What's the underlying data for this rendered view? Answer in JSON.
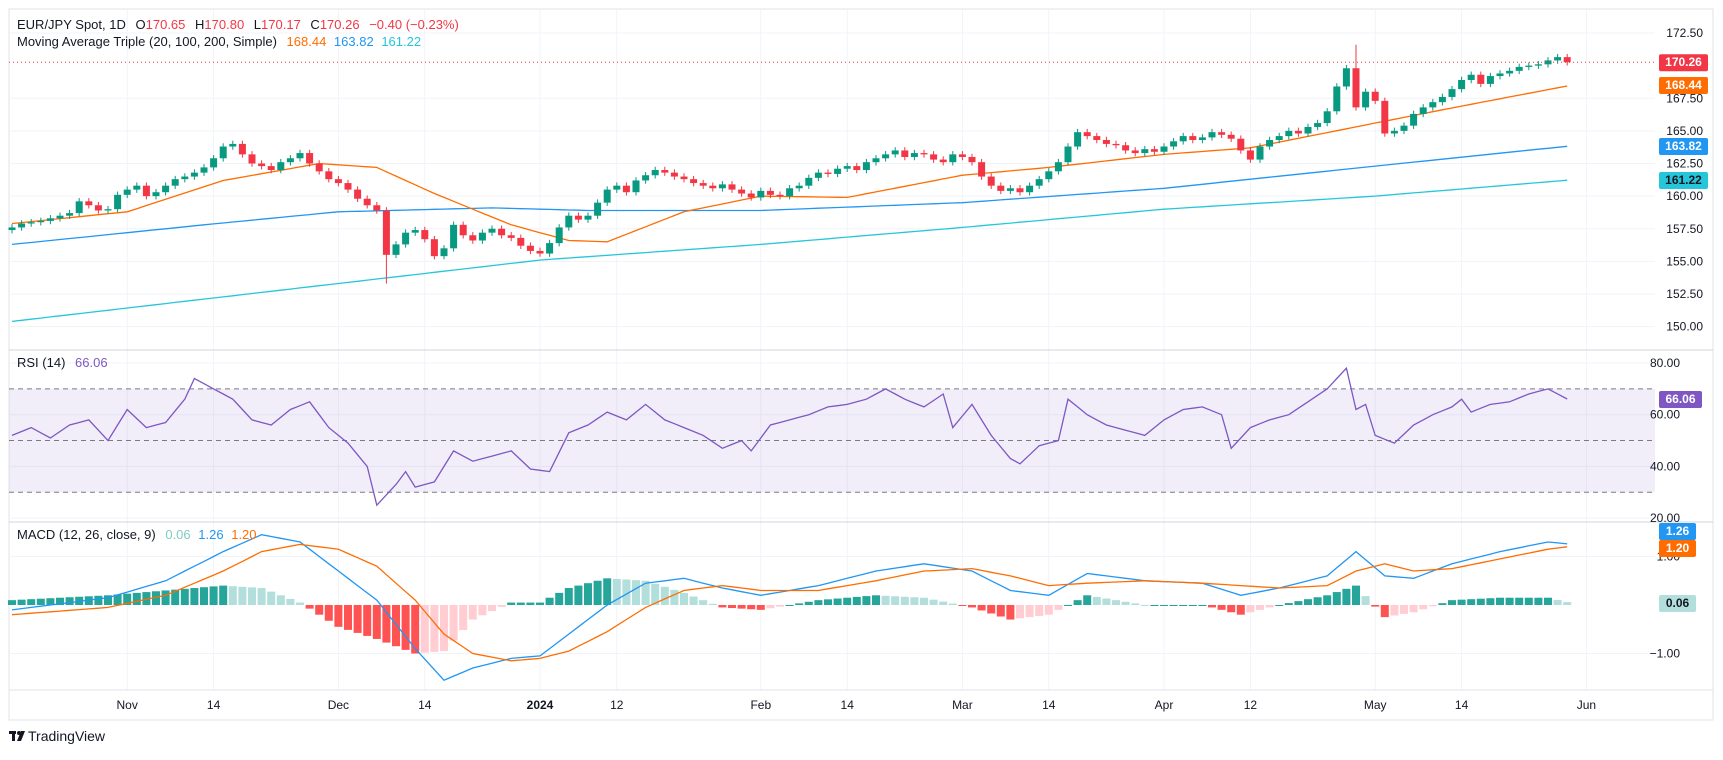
{
  "header": {
    "symbol": "EUR/JPY Spot, 1D",
    "open_label": "O",
    "open": "170.65",
    "high_label": "H",
    "high": "170.80",
    "low_label": "L",
    "low": "170.17",
    "close_label": "C",
    "close": "170.26",
    "change": "−0.40 (−0.23%)",
    "ma_title": "Moving Average Triple (20, 100, 200, Simple)",
    "ma20": "168.44",
    "ma100": "163.82",
    "ma200": "161.22"
  },
  "rsi_legend": {
    "title": "RSI (14)",
    "value": "66.06"
  },
  "macd_legend": {
    "title": "MACD (12, 26, close, 9)",
    "hist": "0.06",
    "macd": "1.26",
    "signal": "1.20"
  },
  "branding": "TradingView",
  "colors": {
    "up": "#089981",
    "down": "#f23645",
    "ma20": "#ff6d00",
    "ma100": "#2196f3",
    "ma200": "#26c6da",
    "rsi": "#7e57c2",
    "macd": "#2196f3",
    "signal": "#ff6d00",
    "hist_up_strong": "#26a69a",
    "hist_up_weak": "#b2dfdb",
    "hist_down_strong": "#ff5252",
    "hist_down_weak": "#ffcdd2"
  },
  "chart_data": [
    {
      "type": "candlestick",
      "title": "EUR/JPY Spot, 1D",
      "ylim": [
        149,
        173
      ],
      "y_ticks": [
        "172.50",
        "167.50",
        "165.00",
        "162.50",
        "160.00",
        "157.50",
        "155.00",
        "152.50",
        "150.00"
      ],
      "x_ticks": [
        "Nov",
        "14",
        "Dec",
        "14",
        "2024",
        "12",
        "Feb",
        "14",
        "Mar",
        "14",
        "Apr",
        "12",
        "May",
        "14",
        "Jun"
      ],
      "close": [
        157.6,
        157.9,
        158.0,
        158.1,
        158.3,
        158.5,
        158.7,
        159.6,
        159.3,
        158.9,
        159.0,
        160.1,
        160.5,
        160.8,
        160.0,
        160.3,
        160.8,
        161.3,
        161.5,
        161.8,
        162.2,
        162.9,
        163.8,
        164.0,
        163.2,
        162.5,
        162.3,
        162.0,
        162.6,
        162.9,
        163.3,
        162.5,
        161.9,
        161.3,
        161.0,
        160.5,
        159.8,
        159.3,
        158.9,
        155.5,
        156.3,
        157.2,
        157.4,
        156.7,
        155.4,
        156.0,
        157.8,
        157.0,
        156.6,
        157.2,
        157.5,
        157.0,
        156.8,
        156.2,
        155.8,
        155.6,
        156.4,
        157.6,
        158.5,
        158.2,
        158.5,
        159.5,
        160.5,
        160.8,
        160.3,
        161.2,
        161.6,
        162.0,
        161.8,
        161.5,
        161.3,
        161.0,
        160.8,
        160.6,
        160.9,
        160.5,
        160.2,
        159.9,
        160.4,
        160.1,
        160.0,
        160.6,
        160.8,
        161.4,
        161.8,
        161.7,
        162.1,
        162.3,
        162.0,
        162.6,
        162.9,
        163.2,
        163.5,
        163.0,
        163.3,
        163.2,
        162.8,
        162.6,
        163.2,
        163.0,
        162.6,
        161.5,
        160.8,
        160.4,
        160.6,
        160.3,
        160.8,
        161.3,
        161.9,
        162.6,
        163.8,
        164.9,
        164.6,
        164.3,
        164.0,
        163.9,
        163.5,
        163.3,
        163.6,
        163.4,
        163.8,
        164.2,
        164.6,
        164.3,
        164.5,
        164.9,
        164.7,
        164.4,
        163.5,
        162.8,
        163.8,
        164.3,
        164.6,
        165.0,
        164.8,
        165.3,
        165.6,
        166.5,
        168.4,
        169.8,
        166.8,
        168.0,
        167.3,
        164.8,
        165.0,
        165.4,
        166.3,
        166.8,
        167.2,
        167.6,
        168.2,
        168.9,
        169.3,
        168.6,
        169.2,
        169.4,
        169.6,
        169.9,
        170.0,
        170.1,
        170.4,
        170.65,
        170.26
      ],
      "notable_wicks": {
        "dec_7_low": 153.3,
        "apr_29_high": 171.6
      },
      "last_price": "170.26",
      "series": [
        {
          "name": "MA 20",
          "points": [
            [
              0,
              157.9
            ],
            [
              12,
              158.8
            ],
            [
              22,
              161.2
            ],
            [
              32,
              162.5
            ],
            [
              38,
              162.2
            ],
            [
              44,
              160.2
            ],
            [
              52,
              157.8
            ],
            [
              58,
              156.6
            ],
            [
              62,
              156.5
            ],
            [
              70,
              158.8
            ],
            [
              78,
              160.0
            ],
            [
              87,
              159.9
            ],
            [
              99,
              161.6
            ],
            [
              108,
              162.2
            ],
            [
              120,
              163.2
            ],
            [
              129,
              163.7
            ],
            [
              142,
              165.6
            ],
            [
              151,
              166.9
            ],
            [
              162,
              168.44
            ]
          ]
        },
        {
          "name": "MA 100",
          "points": [
            [
              0,
              156.3
            ],
            [
              20,
              157.8
            ],
            [
              34,
              158.8
            ],
            [
              50,
              159.1
            ],
            [
              60,
              158.9
            ],
            [
              78,
              158.9
            ],
            [
              99,
              159.5
            ],
            [
              120,
              160.6
            ],
            [
              142,
              162.3
            ],
            [
              162,
              163.82
            ]
          ]
        },
        {
          "name": "MA 200",
          "points": [
            [
              0,
              150.4
            ],
            [
              55,
              155.1
            ],
            [
              78,
              156.3
            ],
            [
              99,
              157.6
            ],
            [
              120,
              159.0
            ],
            [
              142,
              160.0
            ],
            [
              162,
              161.22
            ]
          ]
        }
      ]
    },
    {
      "type": "line",
      "title": "RSI (14)",
      "ylim": [
        18,
        84
      ],
      "y_ticks": [
        "80.00",
        "60.00",
        "40.00",
        "20.00"
      ],
      "bands": [
        70,
        50,
        30
      ],
      "points": [
        [
          0,
          52
        ],
        [
          2,
          55
        ],
        [
          4,
          51
        ],
        [
          6,
          56
        ],
        [
          8,
          58
        ],
        [
          10,
          50
        ],
        [
          12,
          62
        ],
        [
          14,
          55
        ],
        [
          16,
          57
        ],
        [
          18,
          66
        ],
        [
          19,
          74
        ],
        [
          21,
          70
        ],
        [
          23,
          66
        ],
        [
          25,
          58
        ],
        [
          27,
          56
        ],
        [
          29,
          62
        ],
        [
          31,
          65
        ],
        [
          33,
          55
        ],
        [
          35,
          49
        ],
        [
          37,
          40
        ],
        [
          38,
          25
        ],
        [
          40,
          33
        ],
        [
          41,
          38
        ],
        [
          42,
          32
        ],
        [
          44,
          34
        ],
        [
          46,
          46
        ],
        [
          48,
          42
        ],
        [
          50,
          44
        ],
        [
          52,
          46
        ],
        [
          54,
          39
        ],
        [
          56,
          38
        ],
        [
          58,
          53
        ],
        [
          60,
          56
        ],
        [
          62,
          61
        ],
        [
          64,
          58
        ],
        [
          66,
          64
        ],
        [
          68,
          58
        ],
        [
          70,
          55
        ],
        [
          72,
          52
        ],
        [
          74,
          47
        ],
        [
          76,
          50
        ],
        [
          77,
          46
        ],
        [
          79,
          56
        ],
        [
          81,
          58
        ],
        [
          83,
          60
        ],
        [
          85,
          63
        ],
        [
          87,
          64
        ],
        [
          89,
          66
        ],
        [
          91,
          70
        ],
        [
          93,
          66
        ],
        [
          95,
          63
        ],
        [
          97,
          68
        ],
        [
          98,
          55
        ],
        [
          100,
          64
        ],
        [
          102,
          52
        ],
        [
          104,
          43
        ],
        [
          105,
          41
        ],
        [
          107,
          48
        ],
        [
          109,
          50
        ],
        [
          110,
          66
        ],
        [
          112,
          60
        ],
        [
          114,
          56
        ],
        [
          116,
          54
        ],
        [
          118,
          52
        ],
        [
          120,
          58
        ],
        [
          122,
          62
        ],
        [
          124,
          63
        ],
        [
          126,
          60
        ],
        [
          127,
          47
        ],
        [
          129,
          55
        ],
        [
          131,
          58
        ],
        [
          133,
          60
        ],
        [
          135,
          65
        ],
        [
          137,
          70
        ],
        [
          139,
          78
        ],
        [
          140,
          62
        ],
        [
          141,
          64
        ],
        [
          142,
          52
        ],
        [
          144,
          49
        ],
        [
          146,
          56
        ],
        [
          148,
          60
        ],
        [
          150,
          63
        ],
        [
          151,
          66
        ],
        [
          152,
          61
        ],
        [
          154,
          64
        ],
        [
          156,
          65
        ],
        [
          158,
          68
        ],
        [
          160,
          70
        ],
        [
          162,
          66.06
        ]
      ],
      "last_value": "66.06"
    },
    {
      "type": "line+histogram",
      "title": "MACD (12, 26, close, 9)",
      "ylim": [
        -1.75,
        1.7
      ],
      "y_ticks": [
        "1.00",
        "-1.00"
      ],
      "series": [
        {
          "name": "MACD",
          "points": [
            [
              0,
              -0.1
            ],
            [
              10,
              0.15
            ],
            [
              16,
              0.5
            ],
            [
              22,
              1.1
            ],
            [
              26,
              1.45
            ],
            [
              30,
              1.3
            ],
            [
              34,
              0.7
            ],
            [
              38,
              0.1
            ],
            [
              42,
              -0.9
            ],
            [
              45,
              -1.55
            ],
            [
              48,
              -1.3
            ],
            [
              52,
              -1.1
            ],
            [
              55,
              -1.05
            ],
            [
              58,
              -0.6
            ],
            [
              62,
              0.0
            ],
            [
              66,
              0.45
            ],
            [
              70,
              0.55
            ],
            [
              74,
              0.35
            ],
            [
              78,
              0.2
            ],
            [
              84,
              0.4
            ],
            [
              90,
              0.7
            ],
            [
              95,
              0.85
            ],
            [
              100,
              0.7
            ],
            [
              104,
              0.3
            ],
            [
              108,
              0.2
            ],
            [
              112,
              0.65
            ],
            [
              118,
              0.5
            ],
            [
              124,
              0.45
            ],
            [
              128,
              0.2
            ],
            [
              132,
              0.35
            ],
            [
              137,
              0.6
            ],
            [
              140,
              1.1
            ],
            [
              143,
              0.6
            ],
            [
              146,
              0.55
            ],
            [
              150,
              0.85
            ],
            [
              155,
              1.1
            ],
            [
              160,
              1.3
            ],
            [
              162,
              1.26
            ]
          ]
        },
        {
          "name": "Signal",
          "points": [
            [
              0,
              -0.2
            ],
            [
              10,
              -0.05
            ],
            [
              16,
              0.2
            ],
            [
              22,
              0.7
            ],
            [
              26,
              1.1
            ],
            [
              30,
              1.25
            ],
            [
              34,
              1.15
            ],
            [
              38,
              0.8
            ],
            [
              42,
              0.1
            ],
            [
              45,
              -0.6
            ],
            [
              48,
              -1.0
            ],
            [
              52,
              -1.15
            ],
            [
              55,
              -1.1
            ],
            [
              58,
              -0.95
            ],
            [
              62,
              -0.55
            ],
            [
              66,
              -0.05
            ],
            [
              70,
              0.3
            ],
            [
              74,
              0.4
            ],
            [
              78,
              0.3
            ],
            [
              84,
              0.3
            ],
            [
              90,
              0.5
            ],
            [
              95,
              0.7
            ],
            [
              100,
              0.75
            ],
            [
              104,
              0.6
            ],
            [
              108,
              0.4
            ],
            [
              112,
              0.45
            ],
            [
              118,
              0.5
            ],
            [
              124,
              0.45
            ],
            [
              128,
              0.4
            ],
            [
              132,
              0.35
            ],
            [
              137,
              0.4
            ],
            [
              140,
              0.7
            ],
            [
              143,
              0.85
            ],
            [
              146,
              0.7
            ],
            [
              150,
              0.75
            ],
            [
              155,
              0.95
            ],
            [
              160,
              1.15
            ],
            [
              162,
              1.2
            ]
          ]
        }
      ],
      "last_values": {
        "macd": "1.26",
        "signal": "1.20",
        "hist": "0.06"
      }
    }
  ]
}
